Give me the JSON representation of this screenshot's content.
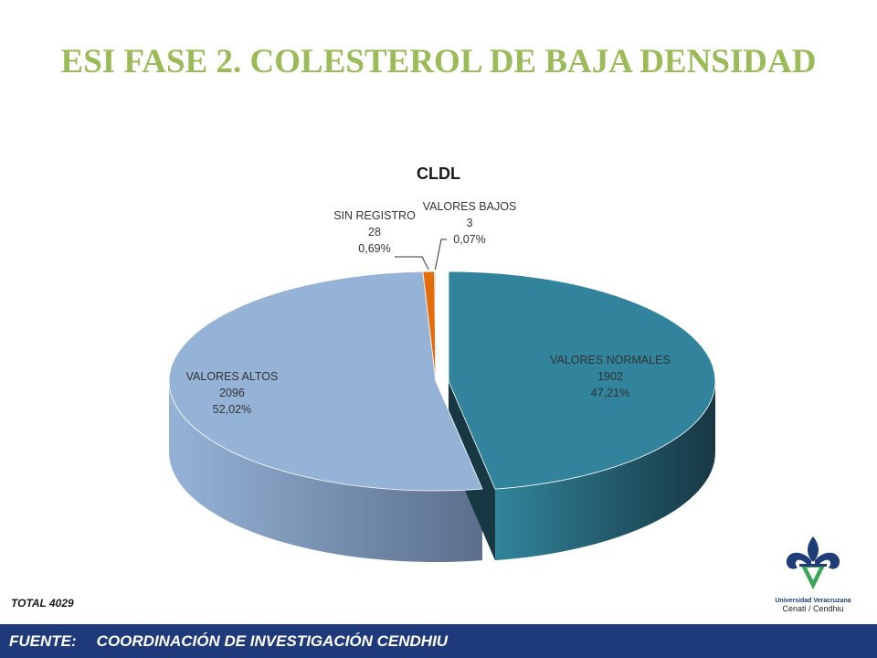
{
  "slide": {
    "title": "ESI FASE 2.  COLESTEROL DE BAJA DENSIDAD",
    "total": "TOTAL 4029",
    "footer_label": "FUENTE:",
    "footer_text": "COORDINACIÓN DE INVESTIGACIÓN CENDHIU"
  },
  "logo": {
    "icon": "university-fleur-de-lis-logo",
    "line1": "Universidad Veracruzana",
    "line2": "Cenati / Cendhiu"
  },
  "chart_data": {
    "type": "pie",
    "style": "3d",
    "title": "CLDL",
    "slices": [
      {
        "label": "VALORES NORMALES",
        "value": 1902,
        "percent_label": "47,21%",
        "color": "#31849b",
        "side_color": "#173743"
      },
      {
        "label": "VALORES ALTOS",
        "value": 2096,
        "percent_label": "52,02%",
        "color": "#95b3d7",
        "side_color": "#5b6f8c"
      },
      {
        "label": "SIN REGISTRO",
        "value": 28,
        "percent_label": "0,69%",
        "color": "#e46c0a",
        "side_color": "#8a3f05"
      },
      {
        "label": "VALORES BAJOS",
        "value": 3,
        "percent_label": "0,07%",
        "color": "#c0c0c0",
        "side_color": "#707070"
      }
    ]
  }
}
